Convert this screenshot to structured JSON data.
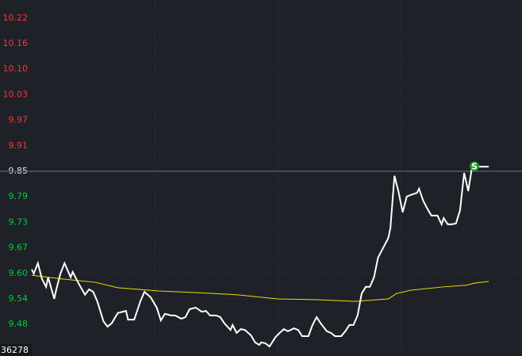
{
  "chart_data": {
    "type": "line",
    "ylim": [
      9.4195,
      10.2632
    ],
    "yticks": [
      {
        "value": 10.2196,
        "label": "10.22"
      },
      {
        "value": 10.158,
        "label": "10.16"
      },
      {
        "value": 10.0964,
        "label": "10.10"
      },
      {
        "value": 10.0348,
        "label": "10.03"
      },
      {
        "value": 9.9732,
        "label": "9.97"
      },
      {
        "value": 9.9116,
        "label": "9.91"
      },
      9.85,
      {
        "value": 9.7884,
        "label": "9.79"
      },
      {
        "value": 9.7268,
        "label": "9.73"
      },
      {
        "value": 9.6652,
        "label": "9.67"
      },
      {
        "value": 9.6036,
        "label": "9.60"
      },
      {
        "value": 9.542,
        "label": "9.54"
      },
      {
        "value": 9.4804,
        "label": "9.48"
      }
    ],
    "reference_line": 9.85,
    "up_color": "#ff3333",
    "down_color": "#00cc33",
    "reference_color": "#e0e0e0",
    "xlim": [
      0,
      240
    ],
    "xticks": [
      60,
      120,
      180
    ],
    "grid": true,
    "series": [
      {
        "color": "#ffffff",
        "x": [
          0,
          1,
          3,
          5,
          7,
          8,
          11,
          12,
          14,
          16,
          19,
          20,
          23,
          26,
          28,
          30,
          32,
          35,
          37,
          39,
          42,
          46,
          47,
          50,
          53,
          55,
          58,
          61,
          63,
          65,
          68,
          70,
          73,
          75,
          77,
          80,
          83,
          85,
          87,
          90,
          92,
          94,
          97,
          98,
          100,
          102,
          104,
          107,
          109,
          111,
          112,
          114,
          116,
          119,
          121,
          123,
          125,
          128,
          130,
          132,
          135,
          137,
          139,
          141,
          144,
          146,
          148,
          151,
          153,
          155,
          157,
          159,
          161,
          163,
          165,
          167,
          169,
          172,
          174,
          175,
          177,
          179,
          181,
          183,
          185,
          188,
          189,
          191,
          193,
          195,
          198,
          200,
          201,
          203,
          205,
          207,
          209,
          211,
          213,
          215,
          216,
          218,
          223
        ],
        "values": [
          9.613,
          9.603,
          9.628,
          9.59,
          9.571,
          9.594,
          9.542,
          9.565,
          9.603,
          9.628,
          9.594,
          9.607,
          9.578,
          9.552,
          9.565,
          9.559,
          9.536,
          9.488,
          9.475,
          9.483,
          9.508,
          9.513,
          9.492,
          9.492,
          9.536,
          9.559,
          9.546,
          9.521,
          9.49,
          9.506,
          9.502,
          9.502,
          9.494,
          9.498,
          9.517,
          9.521,
          9.511,
          9.513,
          9.502,
          9.502,
          9.498,
          9.483,
          9.467,
          9.479,
          9.46,
          9.469,
          9.467,
          9.454,
          9.437,
          9.431,
          9.437,
          9.435,
          9.427,
          9.45,
          9.46,
          9.469,
          9.464,
          9.471,
          9.467,
          9.452,
          9.452,
          9.479,
          9.498,
          9.483,
          9.464,
          9.46,
          9.452,
          9.452,
          9.464,
          9.479,
          9.479,
          9.502,
          9.555,
          9.571,
          9.571,
          9.594,
          9.642,
          9.67,
          9.689,
          9.712,
          9.839,
          9.8,
          9.751,
          9.789,
          9.793,
          9.798,
          9.808,
          9.779,
          9.76,
          9.743,
          9.743,
          9.722,
          9.737,
          9.722,
          9.722,
          9.724,
          9.756,
          9.846,
          9.802,
          9.865,
          9.867,
          9.861,
          9.861
        ]
      },
      {
        "color": "#e8e000",
        "x": [
          0,
          15,
          31,
          42,
          62,
          81,
          100,
          120,
          139,
          158,
          174,
          178,
          185,
          201,
          212,
          216,
          223
        ],
        "values": [
          9.599,
          9.59,
          9.582,
          9.569,
          9.561,
          9.557,
          9.552,
          9.542,
          9.54,
          9.536,
          9.542,
          9.555,
          9.563,
          9.571,
          9.575,
          9.58,
          9.584
        ]
      }
    ],
    "signal": {
      "label": "S",
      "x": 216,
      "value": 9.862,
      "color": "#1a9a2a"
    },
    "volume_label": "36278"
  }
}
